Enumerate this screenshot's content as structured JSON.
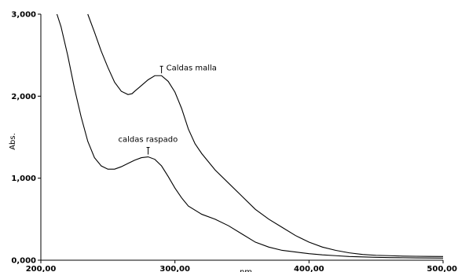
{
  "chart_data": {
    "type": "line",
    "title": "",
    "xlabel": "nm",
    "ylabel": "Abs.",
    "xlim": [
      200,
      500
    ],
    "ylim": [
      0,
      3
    ],
    "x_ticks": [
      200,
      300,
      400,
      500
    ],
    "x_tick_labels": [
      "200,00",
      "300,00",
      "400,00",
      "500,00"
    ],
    "y_ticks": [
      0,
      1,
      2,
      3
    ],
    "y_tick_labels": [
      "0,000",
      "1,000",
      "2,000",
      "3,000"
    ],
    "grid": false,
    "series": [
      {
        "name": "Caldas malla",
        "x": [
          235,
          240,
          245,
          250,
          255,
          260,
          265,
          268,
          270,
          275,
          280,
          285,
          290,
          295,
          300,
          305,
          310,
          315,
          320,
          330,
          340,
          350,
          360,
          370,
          380,
          390,
          400,
          410,
          420,
          430,
          440,
          450,
          460,
          470,
          480,
          490,
          500
        ],
        "y": [
          3.0,
          2.78,
          2.55,
          2.35,
          2.17,
          2.06,
          2.02,
          2.03,
          2.06,
          2.13,
          2.2,
          2.25,
          2.25,
          2.18,
          2.05,
          1.85,
          1.6,
          1.42,
          1.3,
          1.1,
          0.94,
          0.78,
          0.62,
          0.5,
          0.4,
          0.3,
          0.22,
          0.16,
          0.12,
          0.09,
          0.07,
          0.06,
          0.055,
          0.05,
          0.048,
          0.046,
          0.045
        ]
      },
      {
        "name": "caldas raspado",
        "x": [
          212,
          215,
          220,
          225,
          230,
          235,
          240,
          245,
          250,
          255,
          260,
          265,
          270,
          275,
          280,
          285,
          290,
          295,
          300,
          305,
          310,
          320,
          330,
          340,
          350,
          360,
          370,
          380,
          390,
          400,
          410,
          420,
          430,
          440,
          450,
          460,
          470,
          480,
          490,
          500
        ],
        "y": [
          3.0,
          2.85,
          2.5,
          2.1,
          1.75,
          1.45,
          1.25,
          1.15,
          1.11,
          1.11,
          1.14,
          1.18,
          1.22,
          1.25,
          1.26,
          1.23,
          1.15,
          1.02,
          0.88,
          0.76,
          0.66,
          0.56,
          0.5,
          0.42,
          0.32,
          0.22,
          0.16,
          0.12,
          0.1,
          0.08,
          0.065,
          0.055,
          0.045,
          0.04,
          0.035,
          0.032,
          0.03,
          0.028,
          0.027,
          0.026
        ]
      }
    ],
    "annotations": [
      {
        "text": "Caldas malla",
        "series": "Caldas malla",
        "x": 290,
        "y": 2.25
      },
      {
        "text": "caldas raspado",
        "series": "caldas raspado",
        "x": 280,
        "y": 1.26
      }
    ]
  }
}
